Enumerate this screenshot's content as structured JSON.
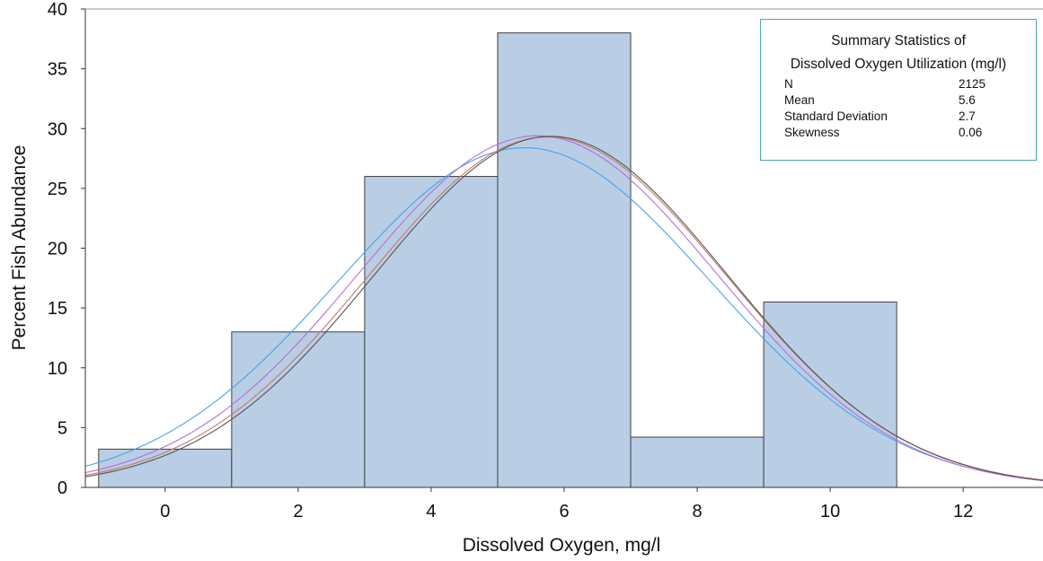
{
  "chart_data": {
    "type": "bar",
    "subtype": "histogram",
    "xlabel": "Dissolved Oxygen, mg/l",
    "ylabel": "Percent Fish Abundance",
    "xlim": [
      -1.2,
      13.2
    ],
    "ylim": [
      0,
      40
    ],
    "xticks": [
      0,
      2,
      4,
      6,
      8,
      10,
      12
    ],
    "yticks": [
      0,
      5,
      10,
      15,
      20,
      25,
      30,
      35,
      40
    ],
    "grid": false,
    "bar_color": "#b9cde5",
    "bar_edge_color": "#404040",
    "bins": [
      {
        "x0": -1,
        "x1": 1,
        "value": 3.2
      },
      {
        "x0": 1,
        "x1": 3,
        "value": 13.0
      },
      {
        "x0": 3,
        "x1": 5,
        "value": 26.0
      },
      {
        "x0": 5,
        "x1": 7,
        "value": 38.0
      },
      {
        "x0": 7,
        "x1": 9,
        "value": 4.2
      },
      {
        "x0": 9,
        "x1": 11,
        "value": 15.5
      }
    ],
    "curves": [
      {
        "color": "#4aa3e8",
        "mean": 5.4,
        "sd": 2.8,
        "peak": 28.4
      },
      {
        "color": "#b56fd6",
        "mean": 5.6,
        "sd": 2.7,
        "peak": 29.4
      },
      {
        "color": "#c77a6a",
        "mean": 5.75,
        "sd": 2.68,
        "peak": 29.3
      },
      {
        "color": "#555555",
        "mean": 5.8,
        "sd": 2.65,
        "peak": 29.35
      }
    ],
    "summary": {
      "title_line1": "Summary Statistics of",
      "title_line2": "Dissolved Oxygen Utilization (mg/l)",
      "rows": [
        {
          "label": "N",
          "value": "2125"
        },
        {
          "label": "Mean",
          "value": "5.6"
        },
        {
          "label": "Standard Deviation",
          "value": "2.7"
        },
        {
          "label": "Skewness",
          "value": "0.06"
        }
      ]
    }
  }
}
